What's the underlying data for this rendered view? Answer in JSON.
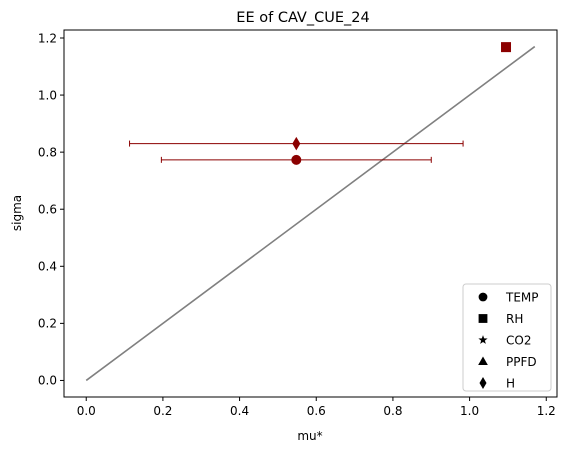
{
  "chart_data": {
    "type": "scatter",
    "title": "EE of CAV_CUE_24",
    "xlabel": "mu*",
    "ylabel": "sigma",
    "xlim": [
      -0.058,
      1.228
    ],
    "ylim": [
      -0.058,
      1.228
    ],
    "xticks": [
      "0.0",
      "0.2",
      "0.4",
      "0.6",
      "0.8",
      "1.0",
      "1.2"
    ],
    "yticks": [
      "0.0",
      "0.2",
      "0.4",
      "0.6",
      "0.8",
      "1.0",
      "1.2"
    ],
    "grid": false,
    "legend_position": "bottom-right",
    "reference_line": {
      "x": [
        0,
        1.17
      ],
      "y": [
        0,
        1.17
      ],
      "color": "#808080"
    },
    "marker_color": "#8b0000",
    "series": [
      {
        "name": "TEMP",
        "marker": "circle",
        "x": 0.548,
        "y": 0.773,
        "xerr": 0.352
      },
      {
        "name": "RH",
        "marker": "square",
        "x": 1.095,
        "y": 1.168,
        "xerr": null
      },
      {
        "name": "CO2",
        "marker": "star",
        "x": null,
        "y": null,
        "xerr": null
      },
      {
        "name": "PPFD",
        "marker": "triangle",
        "x": null,
        "y": null,
        "xerr": null
      },
      {
        "name": "H",
        "marker": "diamond",
        "x": 0.548,
        "y": 0.83,
        "xerr": 0.435
      }
    ]
  }
}
